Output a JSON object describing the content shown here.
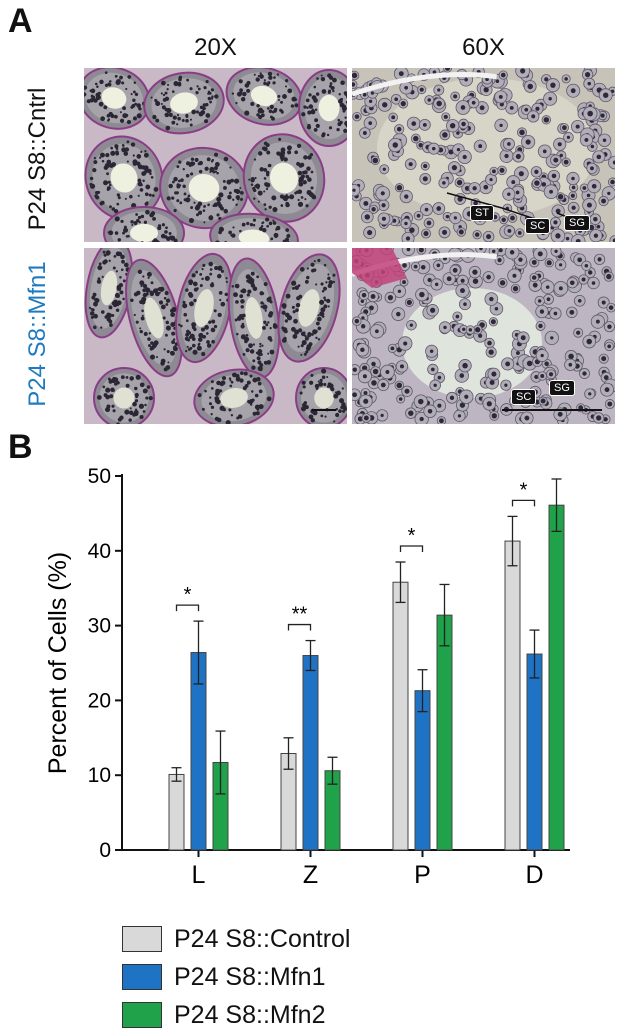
{
  "panels": {
    "a_label": "A",
    "b_label": "B",
    "col_labels": [
      "20X",
      "60X"
    ],
    "row_labels": [
      {
        "text": "P24 S8::Cntrl",
        "color": "#111111"
      },
      {
        "text": "P24 S8::Mfn1",
        "color": "#1f7bc0"
      }
    ],
    "cell_tags": {
      "cntrl_60x": [
        "ST",
        "SC",
        "SG"
      ],
      "mfn1_60x": [
        "SC",
        "SG"
      ]
    }
  },
  "chart_data": {
    "type": "bar",
    "categories": [
      "L",
      "Z",
      "P",
      "D"
    ],
    "ylabel": "Percent of Cells (%)",
    "xlabel": "",
    "ylim": [
      0,
      50
    ],
    "yticks": [
      0,
      10,
      20,
      30,
      40,
      50
    ],
    "series": [
      {
        "name": "P24 S8::Control",
        "color": "#d9d9d9",
        "values": [
          10.1,
          12.9,
          35.8,
          41.3
        ],
        "errors": [
          0.9,
          2.1,
          2.7,
          3.3
        ]
      },
      {
        "name": "P24 S8::Mfn1",
        "color": "#1f73c4",
        "values": [
          26.4,
          26.0,
          21.3,
          26.2
        ],
        "errors": [
          4.2,
          2.0,
          2.8,
          3.2
        ]
      },
      {
        "name": "P24 S8::Mfn2",
        "color": "#1fa24a",
        "values": [
          11.7,
          10.6,
          31.4,
          46.1
        ],
        "errors": [
          4.2,
          1.8,
          4.1,
          3.5
        ]
      }
    ],
    "significance": [
      {
        "category": "L",
        "label": "*"
      },
      {
        "category": "Z",
        "label": "**"
      },
      {
        "category": "P",
        "label": "*"
      },
      {
        "category": "D",
        "label": "*"
      }
    ],
    "legend_position": "bottom-left"
  }
}
